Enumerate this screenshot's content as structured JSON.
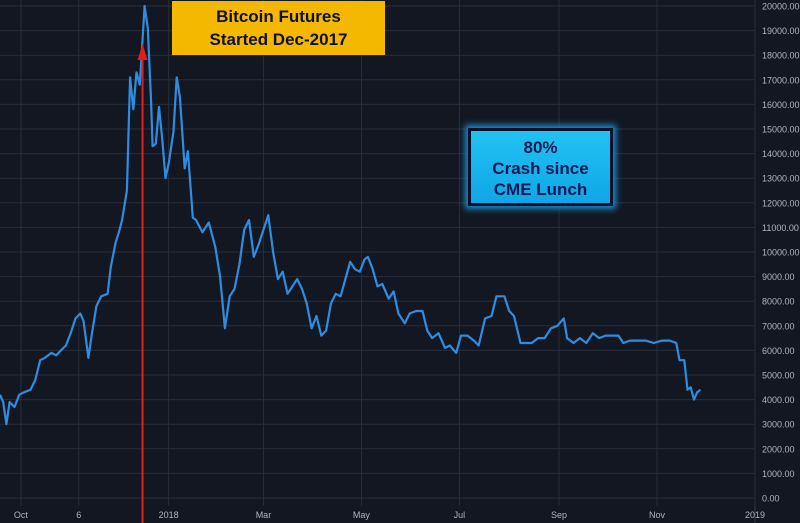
{
  "chart_data": {
    "type": "line",
    "title": "",
    "xlabel": "",
    "ylabel": "",
    "ylim": [
      0,
      20000
    ],
    "y_ticks": [
      "0.00",
      "1000.00",
      "2000.00",
      "3000.00",
      "4000.00",
      "5000.00",
      "6000.00",
      "7000.00",
      "8000.00",
      "9000.00",
      "10000.00",
      "11000.00",
      "12000.00",
      "13000.00",
      "14000.00",
      "15000.00",
      "16000.00",
      "17000.00",
      "18000.00",
      "19000.00",
      "20000.00"
    ],
    "x_ticks": [
      {
        "label": "Oct",
        "date": "2017-10-01"
      },
      {
        "label": "6",
        "date": "2017-11-06"
      },
      {
        "label": "2018",
        "date": "2018-01-01"
      },
      {
        "label": "Mar",
        "date": "2018-03-01"
      },
      {
        "label": "May",
        "date": "2018-05-01"
      },
      {
        "label": "Jul",
        "date": "2018-07-01"
      },
      {
        "label": "Sep",
        "date": "2018-09-01"
      },
      {
        "label": "Nov",
        "date": "2018-11-01"
      },
      {
        "label": "2019",
        "date": "2019-01-01"
      }
    ],
    "xlim": [
      "2017-09-18",
      "2019-01-01"
    ],
    "grid": true,
    "series": [
      {
        "color": "#2e8de0",
        "points": [
          [
            "2017-09-18",
            4200
          ],
          [
            "2017-09-20",
            3900
          ],
          [
            "2017-09-22",
            3000
          ],
          [
            "2017-09-24",
            3900
          ],
          [
            "2017-09-27",
            3700
          ],
          [
            "2017-09-30",
            4200
          ],
          [
            "2017-10-03",
            4300
          ],
          [
            "2017-10-07",
            4400
          ],
          [
            "2017-10-10",
            4800
          ],
          [
            "2017-10-13",
            5600
          ],
          [
            "2017-10-16",
            5700
          ],
          [
            "2017-10-20",
            5900
          ],
          [
            "2017-10-23",
            5800
          ],
          [
            "2017-10-26",
            6000
          ],
          [
            "2017-10-29",
            6200
          ],
          [
            "2017-11-01",
            6700
          ],
          [
            "2017-11-04",
            7300
          ],
          [
            "2017-11-07",
            7500
          ],
          [
            "2017-11-09",
            7200
          ],
          [
            "2017-11-12",
            5700
          ],
          [
            "2017-11-14",
            6600
          ],
          [
            "2017-11-17",
            7800
          ],
          [
            "2017-11-20",
            8200
          ],
          [
            "2017-11-24",
            8300
          ],
          [
            "2017-11-26",
            9400
          ],
          [
            "2017-11-29",
            10400
          ],
          [
            "2017-12-01",
            10800
          ],
          [
            "2017-12-03",
            11300
          ],
          [
            "2017-12-06",
            12500
          ],
          [
            "2017-12-08",
            17100
          ],
          [
            "2017-12-10",
            15800
          ],
          [
            "2017-12-12",
            17300
          ],
          [
            "2017-12-14",
            16800
          ],
          [
            "2017-12-17",
            20000
          ],
          [
            "2017-12-19",
            19100
          ],
          [
            "2017-12-21",
            16200
          ],
          [
            "2017-12-22",
            14300
          ],
          [
            "2017-12-24",
            14400
          ],
          [
            "2017-12-26",
            15900
          ],
          [
            "2017-12-28",
            14600
          ],
          [
            "2017-12-30",
            13000
          ],
          [
            "2018-01-01",
            13600
          ],
          [
            "2018-01-04",
            14900
          ],
          [
            "2018-01-06",
            17100
          ],
          [
            "2018-01-08",
            16300
          ],
          [
            "2018-01-11",
            13400
          ],
          [
            "2018-01-13",
            14100
          ],
          [
            "2018-01-16",
            11400
          ],
          [
            "2018-01-18",
            11300
          ],
          [
            "2018-01-22",
            10800
          ],
          [
            "2018-01-26",
            11200
          ],
          [
            "2018-01-30",
            10200
          ],
          [
            "2018-02-02",
            9000
          ],
          [
            "2018-02-05",
            6900
          ],
          [
            "2018-02-08",
            8200
          ],
          [
            "2018-02-11",
            8500
          ],
          [
            "2018-02-14",
            9500
          ],
          [
            "2018-02-17",
            10900
          ],
          [
            "2018-02-20",
            11300
          ],
          [
            "2018-02-23",
            9800
          ],
          [
            "2018-02-26",
            10300
          ],
          [
            "2018-03-01",
            10900
          ],
          [
            "2018-03-04",
            11500
          ],
          [
            "2018-03-07",
            10000
          ],
          [
            "2018-03-10",
            8900
          ],
          [
            "2018-03-13",
            9200
          ],
          [
            "2018-03-16",
            8300
          ],
          [
            "2018-03-19",
            8600
          ],
          [
            "2018-03-22",
            8900
          ],
          [
            "2018-03-25",
            8500
          ],
          [
            "2018-03-28",
            7900
          ],
          [
            "2018-03-31",
            6900
          ],
          [
            "2018-04-03",
            7400
          ],
          [
            "2018-04-06",
            6600
          ],
          [
            "2018-04-09",
            6800
          ],
          [
            "2018-04-12",
            7900
          ],
          [
            "2018-04-15",
            8300
          ],
          [
            "2018-04-18",
            8200
          ],
          [
            "2018-04-21",
            8900
          ],
          [
            "2018-04-24",
            9600
          ],
          [
            "2018-04-27",
            9300
          ],
          [
            "2018-04-30",
            9200
          ],
          [
            "2018-05-03",
            9700
          ],
          [
            "2018-05-05",
            9800
          ],
          [
            "2018-05-08",
            9300
          ],
          [
            "2018-05-11",
            8600
          ],
          [
            "2018-05-14",
            8700
          ],
          [
            "2018-05-18",
            8100
          ],
          [
            "2018-05-21",
            8400
          ],
          [
            "2018-05-24",
            7500
          ],
          [
            "2018-05-28",
            7100
          ],
          [
            "2018-05-31",
            7500
          ],
          [
            "2018-06-04",
            7600
          ],
          [
            "2018-06-08",
            7600
          ],
          [
            "2018-06-11",
            6800
          ],
          [
            "2018-06-14",
            6500
          ],
          [
            "2018-06-18",
            6700
          ],
          [
            "2018-06-22",
            6100
          ],
          [
            "2018-06-25",
            6200
          ],
          [
            "2018-06-29",
            5900
          ],
          [
            "2018-07-02",
            6600
          ],
          [
            "2018-07-06",
            6600
          ],
          [
            "2018-07-10",
            6400
          ],
          [
            "2018-07-13",
            6200
          ],
          [
            "2018-07-17",
            7300
          ],
          [
            "2018-07-21",
            7400
          ],
          [
            "2018-07-24",
            8200
          ],
          [
            "2018-07-26",
            8200
          ],
          [
            "2018-07-29",
            8200
          ],
          [
            "2018-08-01",
            7600
          ],
          [
            "2018-08-04",
            7400
          ],
          [
            "2018-08-08",
            6300
          ],
          [
            "2018-08-12",
            6300
          ],
          [
            "2018-08-15",
            6300
          ],
          [
            "2018-08-19",
            6500
          ],
          [
            "2018-08-23",
            6500
          ],
          [
            "2018-08-27",
            6900
          ],
          [
            "2018-08-31",
            7000
          ],
          [
            "2018-09-04",
            7300
          ],
          [
            "2018-09-06",
            6500
          ],
          [
            "2018-09-10",
            6300
          ],
          [
            "2018-09-14",
            6500
          ],
          [
            "2018-09-18",
            6300
          ],
          [
            "2018-09-22",
            6700
          ],
          [
            "2018-09-26",
            6500
          ],
          [
            "2018-09-30",
            6600
          ],
          [
            "2018-10-04",
            6600
          ],
          [
            "2018-10-08",
            6600
          ],
          [
            "2018-10-11",
            6300
          ],
          [
            "2018-10-15",
            6400
          ],
          [
            "2018-10-20",
            6400
          ],
          [
            "2018-10-25",
            6400
          ],
          [
            "2018-10-30",
            6300
          ],
          [
            "2018-11-04",
            6400
          ],
          [
            "2018-11-09",
            6400
          ],
          [
            "2018-11-13",
            6300
          ],
          [
            "2018-11-15",
            5600
          ],
          [
            "2018-11-18",
            5600
          ],
          [
            "2018-11-20",
            4400
          ],
          [
            "2018-11-22",
            4500
          ],
          [
            "2018-11-24",
            4000
          ],
          [
            "2018-11-26",
            4300
          ],
          [
            "2018-11-28",
            4400
          ]
        ]
      }
    ],
    "annotations": {
      "futures_marker": {
        "date": "2017-12-17",
        "color": "#e01e1e"
      },
      "futures_callout": {
        "lines": [
          "Bitcoin Futures",
          "Started Dec-2017"
        ],
        "background": "#f5b800",
        "text_color": "#0d1030"
      },
      "crash_callout": {
        "lines": [
          "80%",
          "Crash since",
          "CME Lunch"
        ],
        "background": "#1bb4ee",
        "text_color": "#0d1a55"
      }
    }
  },
  "colors": {
    "background": "#131722",
    "grid": "#2a2e39",
    "tick_text": "#b2b5be",
    "price_line": "#2e8de0"
  }
}
